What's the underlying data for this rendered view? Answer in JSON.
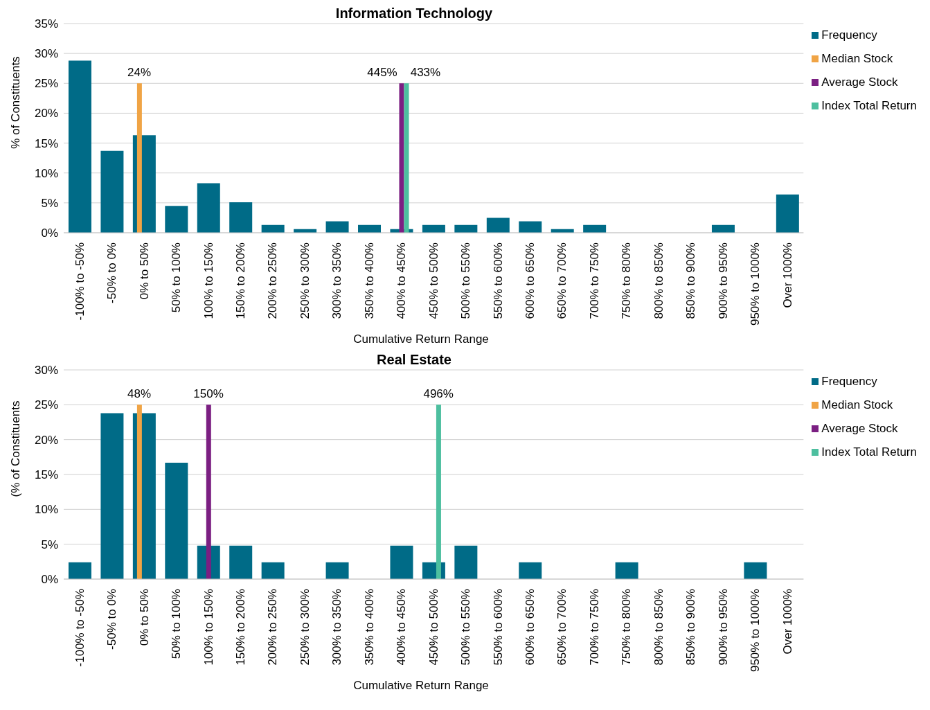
{
  "chart_data": [
    {
      "type": "bar",
      "title": "Information Technology",
      "xlabel": "Cumulative Return Range",
      "ylabel": "% of Constituents",
      "categories": [
        "-100% to -50%",
        "-50% to 0%",
        "0% to 50%",
        "50% to 100%",
        "100% to 150%",
        "150% to 200%",
        "200% to 250%",
        "250% to 300%",
        "300% to 350%",
        "350% to 400%",
        "400% to 450%",
        "450% to 500%",
        "500% to 550%",
        "550% to 600%",
        "600% to 650%",
        "650% to 700%",
        "700% to 750%",
        "750% to 800%",
        "800% to 850%",
        "850% to 900%",
        "900% to 950%",
        "950% to 1000%",
        "Over 1000%"
      ],
      "series": [
        {
          "name": "Frequency",
          "color": "#006b87",
          "values": [
            28.8,
            13.7,
            16.3,
            4.5,
            8.3,
            5.1,
            1.3,
            0.6,
            1.9,
            1.3,
            0.6,
            1.3,
            1.3,
            2.5,
            1.9,
            0.6,
            1.3,
            0,
            0,
            0,
            1.3,
            0,
            6.4
          ]
        },
        {
          "name": "Median Stock",
          "color": "#f0a445",
          "values": [
            null,
            null,
            25,
            null,
            null,
            null,
            null,
            null,
            null,
            null,
            null,
            null,
            null,
            null,
            null,
            null,
            null,
            null,
            null,
            null,
            null,
            null,
            null
          ]
        },
        {
          "name": "Average Stock",
          "color": "#7b1f82",
          "values": [
            null,
            null,
            null,
            null,
            null,
            null,
            null,
            null,
            null,
            null,
            25,
            null,
            null,
            null,
            null,
            null,
            null,
            null,
            null,
            null,
            null,
            null,
            null
          ]
        },
        {
          "name": "Index Total Return",
          "color": "#4dbf9f",
          "values": [
            null,
            null,
            null,
            null,
            null,
            null,
            null,
            null,
            null,
            null,
            25,
            null,
            null,
            null,
            null,
            null,
            null,
            null,
            null,
            null,
            null,
            null,
            null
          ]
        }
      ],
      "annotations": [
        {
          "text": "24%",
          "x": "0% to 50%",
          "y": 25
        },
        {
          "text": "445%",
          "x": "400% to 450%",
          "y": 25
        },
        {
          "text": "433%",
          "x": "400% to 450%",
          "y": 25
        }
      ],
      "ylim": [
        0,
        35
      ],
      "yticks": [
        {
          "value": 0,
          "label": "0%"
        },
        {
          "value": 5,
          "label": "5%"
        },
        {
          "value": 10,
          "label": "10%"
        },
        {
          "value": 15,
          "label": "15%"
        },
        {
          "value": 20,
          "label": "20%"
        },
        {
          "value": 25,
          "label": "25%"
        },
        {
          "value": 30,
          "label": "30%"
        },
        {
          "value": 35,
          "label": "35%"
        }
      ],
      "grid": "y",
      "legend": "top right"
    },
    {
      "type": "bar",
      "title": "Real Estate",
      "xlabel": "Cumulative Return Range",
      "ylabel": "(% of Constituents",
      "categories": [
        "-100% to -50%",
        "-50% to 0%",
        "0% to 50%",
        "50% to 100%",
        "100% to 150%",
        "150% to 200%",
        "200% to 250%",
        "250% to 300%",
        "300% to 350%",
        "350% to 400%",
        "400% to 450%",
        "450% to 500%",
        "500% to 550%",
        "550% to 600%",
        "600% to 650%",
        "650% to 700%",
        "700% to 750%",
        "750% to 800%",
        "800% to 850%",
        "850% to 900%",
        "900% to 950%",
        "950% to 1000%",
        "Over 1000%"
      ],
      "series": [
        {
          "name": "Frequency",
          "color": "#006b87",
          "values": [
            2.4,
            23.8,
            23.8,
            16.7,
            4.8,
            4.8,
            2.4,
            0,
            2.4,
            0,
            4.8,
            2.4,
            4.8,
            0,
            2.4,
            0,
            0,
            2.4,
            0,
            0,
            0,
            2.4,
            0
          ]
        },
        {
          "name": "Median Stock",
          "color": "#f0a445",
          "values": [
            null,
            null,
            25,
            null,
            null,
            null,
            null,
            null,
            null,
            null,
            null,
            null,
            null,
            null,
            null,
            null,
            null,
            null,
            null,
            null,
            null,
            null,
            null
          ]
        },
        {
          "name": "Average Stock",
          "color": "#7b1f82",
          "values": [
            null,
            null,
            null,
            null,
            25,
            null,
            null,
            null,
            null,
            null,
            null,
            null,
            null,
            null,
            null,
            null,
            null,
            null,
            null,
            null,
            null,
            null,
            null
          ]
        },
        {
          "name": "Index Total Return",
          "color": "#4dbf9f",
          "values": [
            null,
            null,
            null,
            null,
            null,
            null,
            null,
            null,
            null,
            null,
            null,
            25,
            null,
            null,
            null,
            null,
            null,
            null,
            null,
            null,
            null,
            null,
            null
          ]
        }
      ],
      "annotations": [
        {
          "text": "48%",
          "x": "0% to 50%",
          "y": 25
        },
        {
          "text": "150%",
          "x": "100% to 150%",
          "y": 25
        },
        {
          "text": "496%",
          "x": "450% to 500%",
          "y": 25
        }
      ],
      "ylim": [
        0,
        30
      ],
      "yticks": [
        {
          "value": 0,
          "label": "0%"
        },
        {
          "value": 5,
          "label": "5%"
        },
        {
          "value": 10,
          "label": "10%"
        },
        {
          "value": 15,
          "label": "15%"
        },
        {
          "value": 20,
          "label": "20%"
        },
        {
          "value": 25,
          "label": "25%"
        },
        {
          "value": 30,
          "label": "30%"
        }
      ],
      "grid": "y",
      "legend": "top right"
    }
  ]
}
